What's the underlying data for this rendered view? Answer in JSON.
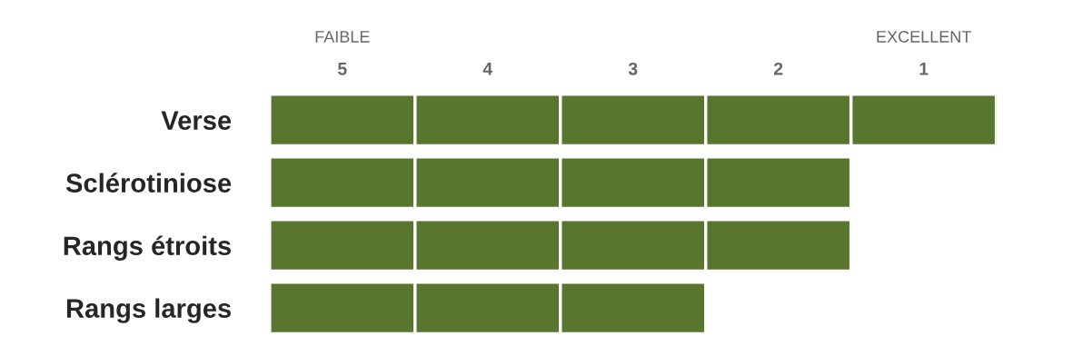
{
  "chart_data": {
    "type": "bar",
    "orientation": "horizontal",
    "categories": [
      "Verse",
      "Sclérotiniose",
      "Rangs étroits",
      "Rangs larges"
    ],
    "series": [
      {
        "color": "#58762d",
        "values": [
          1,
          1,
          1,
          1
        ],
        "base": [
          4.5,
          4.5,
          4.5,
          4.5
        ]
      },
      {
        "color": "#58762d",
        "values": [
          1,
          1,
          1,
          1
        ],
        "base": [
          3.5,
          3.5,
          3.5,
          3.5
        ]
      },
      {
        "color": "#58762d",
        "values": [
          1,
          1,
          1,
          1
        ],
        "base": [
          2.5,
          2.5,
          2.5,
          2.5
        ]
      },
      {
        "color": "#58762d",
        "values": [
          1,
          1,
          1,
          null
        ],
        "base": [
          1.5,
          1.5,
          1.5,
          null
        ]
      },
      {
        "color": "#58762d",
        "values": [
          1,
          null,
          null,
          null
        ],
        "base": [
          0.5,
          null,
          null,
          null
        ]
      }
    ],
    "xlim": [
      5.5,
      0.5
    ],
    "xticks": [
      5,
      4,
      3,
      2,
      1
    ],
    "annotations": [
      "FAIBLE",
      "EXCELLENT"
    ],
    "grid": false,
    "legend": false
  }
}
